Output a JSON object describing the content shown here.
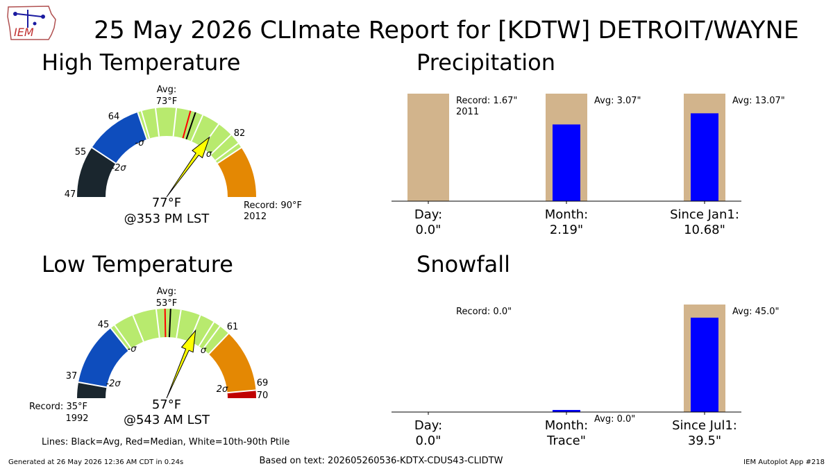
{
  "title": "25 May 2026 CLImate Report for [KDTW] DETROIT/WAYNE",
  "logo": {
    "text": "IEM",
    "icon": "iowa-state-weather-logo"
  },
  "colors": {
    "bar_bg": "#d2b48c",
    "bar_fg": "#0000ff",
    "g_dark": "#1a262e",
    "g_blue": "#0e4dbd",
    "g_green": "#b8ea6e",
    "g_orange": "#e48803",
    "g_red": "#c00000",
    "needle": "#ffff00"
  },
  "high": {
    "heading": "High Temperature",
    "value_label": "77°F",
    "time_label": "@353 PM LST",
    "avg_label": "Avg:",
    "avg_value": "73°F",
    "record_label": "Record: 90°F",
    "record_year": "2012",
    "ticks": [
      "47",
      "55",
      "64",
      "82"
    ],
    "sigma": {
      "m2": "-2σ",
      "m1": "-σ",
      "p1": "σ"
    }
  },
  "low": {
    "heading": "Low Temperature",
    "value_label": "57°F",
    "time_label": "@543 AM LST",
    "avg_label": "Avg:",
    "avg_value": "53°F",
    "record_label": "Record: 35°F",
    "record_year": "1992",
    "ticks": [
      "37",
      "45",
      "61",
      "69",
      "70"
    ],
    "sigma": {
      "m2": "-2σ",
      "m1": "-σ",
      "p1": "σ",
      "p2": "2σ"
    }
  },
  "chart_data": [
    {
      "type": "gauge",
      "title": "High Temperature",
      "unit": "°F",
      "min": 47,
      "max": 90,
      "observed": 77,
      "avg": 73,
      "median": 72.2,
      "record": 90,
      "record_year": 2012,
      "segments": [
        {
          "from": 47,
          "to": 55,
          "color": "dark"
        },
        {
          "from": 55,
          "to": 64,
          "color": "blue"
        },
        {
          "from": 64,
          "to": 82,
          "color": "green"
        },
        {
          "from": 82,
          "to": 90,
          "color": "orange"
        }
      ],
      "sigma_bounds": [
        55,
        64,
        82
      ],
      "white_lines": [
        64.6,
        66.8,
        70,
        74.2,
        77,
        79.5,
        81.2
      ]
    },
    {
      "type": "gauge",
      "title": "Low Temperature",
      "unit": "°F",
      "min": 35,
      "max": 70,
      "observed": 57,
      "avg": 53,
      "median": 52.3,
      "record": 35,
      "record_year": 1992,
      "segments": [
        {
          "from": 35,
          "to": 37,
          "color": "dark"
        },
        {
          "from": 37,
          "to": 45,
          "color": "blue"
        },
        {
          "from": 45,
          "to": 61,
          "color": "green"
        },
        {
          "from": 61,
          "to": 69,
          "color": "orange"
        },
        {
          "from": 69,
          "to": 70,
          "color": "red"
        }
      ],
      "sigma_bounds": [
        37,
        45,
        61,
        69
      ],
      "white_lines": [
        45.6,
        48.2,
        51.2,
        54.3,
        56.8,
        58.7,
        59.6
      ]
    },
    {
      "type": "bar",
      "title": "Precipitation",
      "categories": [
        "Day:",
        "Month:",
        "Since Jan1:"
      ],
      "value_labels": [
        "0.0\"",
        "2.19\"",
        "10.68\""
      ],
      "observed": [
        0.0,
        2.19,
        10.68
      ],
      "bg_labels": [
        "Record: 1.67\"",
        "Avg: 3.07\"",
        "Avg: 13.07\""
      ],
      "bg_sublabels": [
        "2011",
        "",
        ""
      ],
      "bg_values": [
        1.67,
        3.07,
        13.07
      ]
    },
    {
      "type": "bar",
      "title": "Snowfall",
      "categories": [
        "Day:",
        "Month:",
        "Since Jul1:"
      ],
      "value_labels": [
        "0.0\"",
        "Trace\"",
        "39.5\""
      ],
      "observed": [
        0.0,
        0.0001,
        39.5
      ],
      "bg_labels": [
        "Record: 0.0\"",
        "Avg: 0.0\"",
        "Avg: 45.0\""
      ],
      "bg_sublabels": [
        "",
        "",
        ""
      ],
      "bg_values": [
        0.0,
        0.0,
        45.0
      ]
    }
  ],
  "legend_text": "Lines: Black=Avg, Red=Median, White=10th-90th Ptile",
  "footer": {
    "generated": "Generated at 26 May 2026 12:36 AM CDT in 0.24s",
    "based_on": "Based on text: 202605260536-KDTX-CDUS43-CLIDTW",
    "app": "IEM Autoplot App #218"
  }
}
